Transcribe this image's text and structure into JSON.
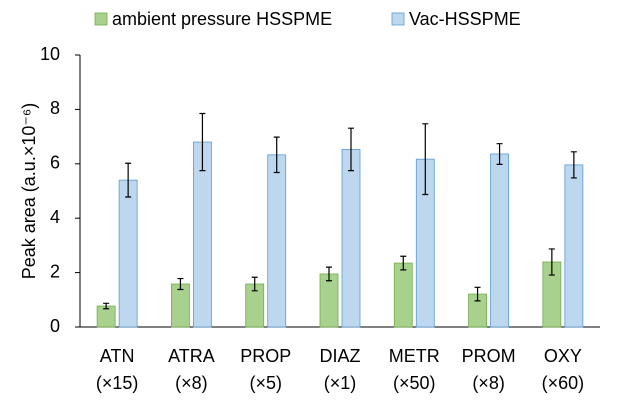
{
  "chart_data": {
    "type": "bar",
    "ylabel": "Peak area (a.u.×10⁻⁶)",
    "categories": [
      [
        "ATN",
        "(×15)"
      ],
      [
        "ATRA",
        "(×8)"
      ],
      [
        "PROP",
        "(×5)"
      ],
      [
        "DIAZ",
        "(×1)"
      ],
      [
        "METR",
        "(×50)"
      ],
      [
        "PROM",
        "(×8)"
      ],
      [
        "OXY",
        "(×60)"
      ]
    ],
    "series": [
      {
        "name": "ambient pressure HSSPME",
        "color": "#a9d18e",
        "edge": "#70ad47",
        "values": [
          0.77,
          1.58,
          1.58,
          1.95,
          2.35,
          1.21,
          2.39
        ],
        "errors": [
          0.1,
          0.2,
          0.25,
          0.25,
          0.25,
          0.25,
          0.48
        ]
      },
      {
        "name": "Vac-HSSPME",
        "color": "#bdd7ee",
        "edge": "#5b9bd5",
        "values": [
          5.4,
          6.8,
          6.33,
          6.53,
          6.17,
          6.36,
          5.96
        ],
        "errors": [
          0.62,
          1.05,
          0.65,
          0.78,
          1.3,
          0.38,
          0.48
        ]
      }
    ],
    "ylim": [
      0,
      10
    ],
    "yticks": [
      0,
      2,
      4,
      6,
      8,
      10
    ],
    "legend": "top"
  }
}
